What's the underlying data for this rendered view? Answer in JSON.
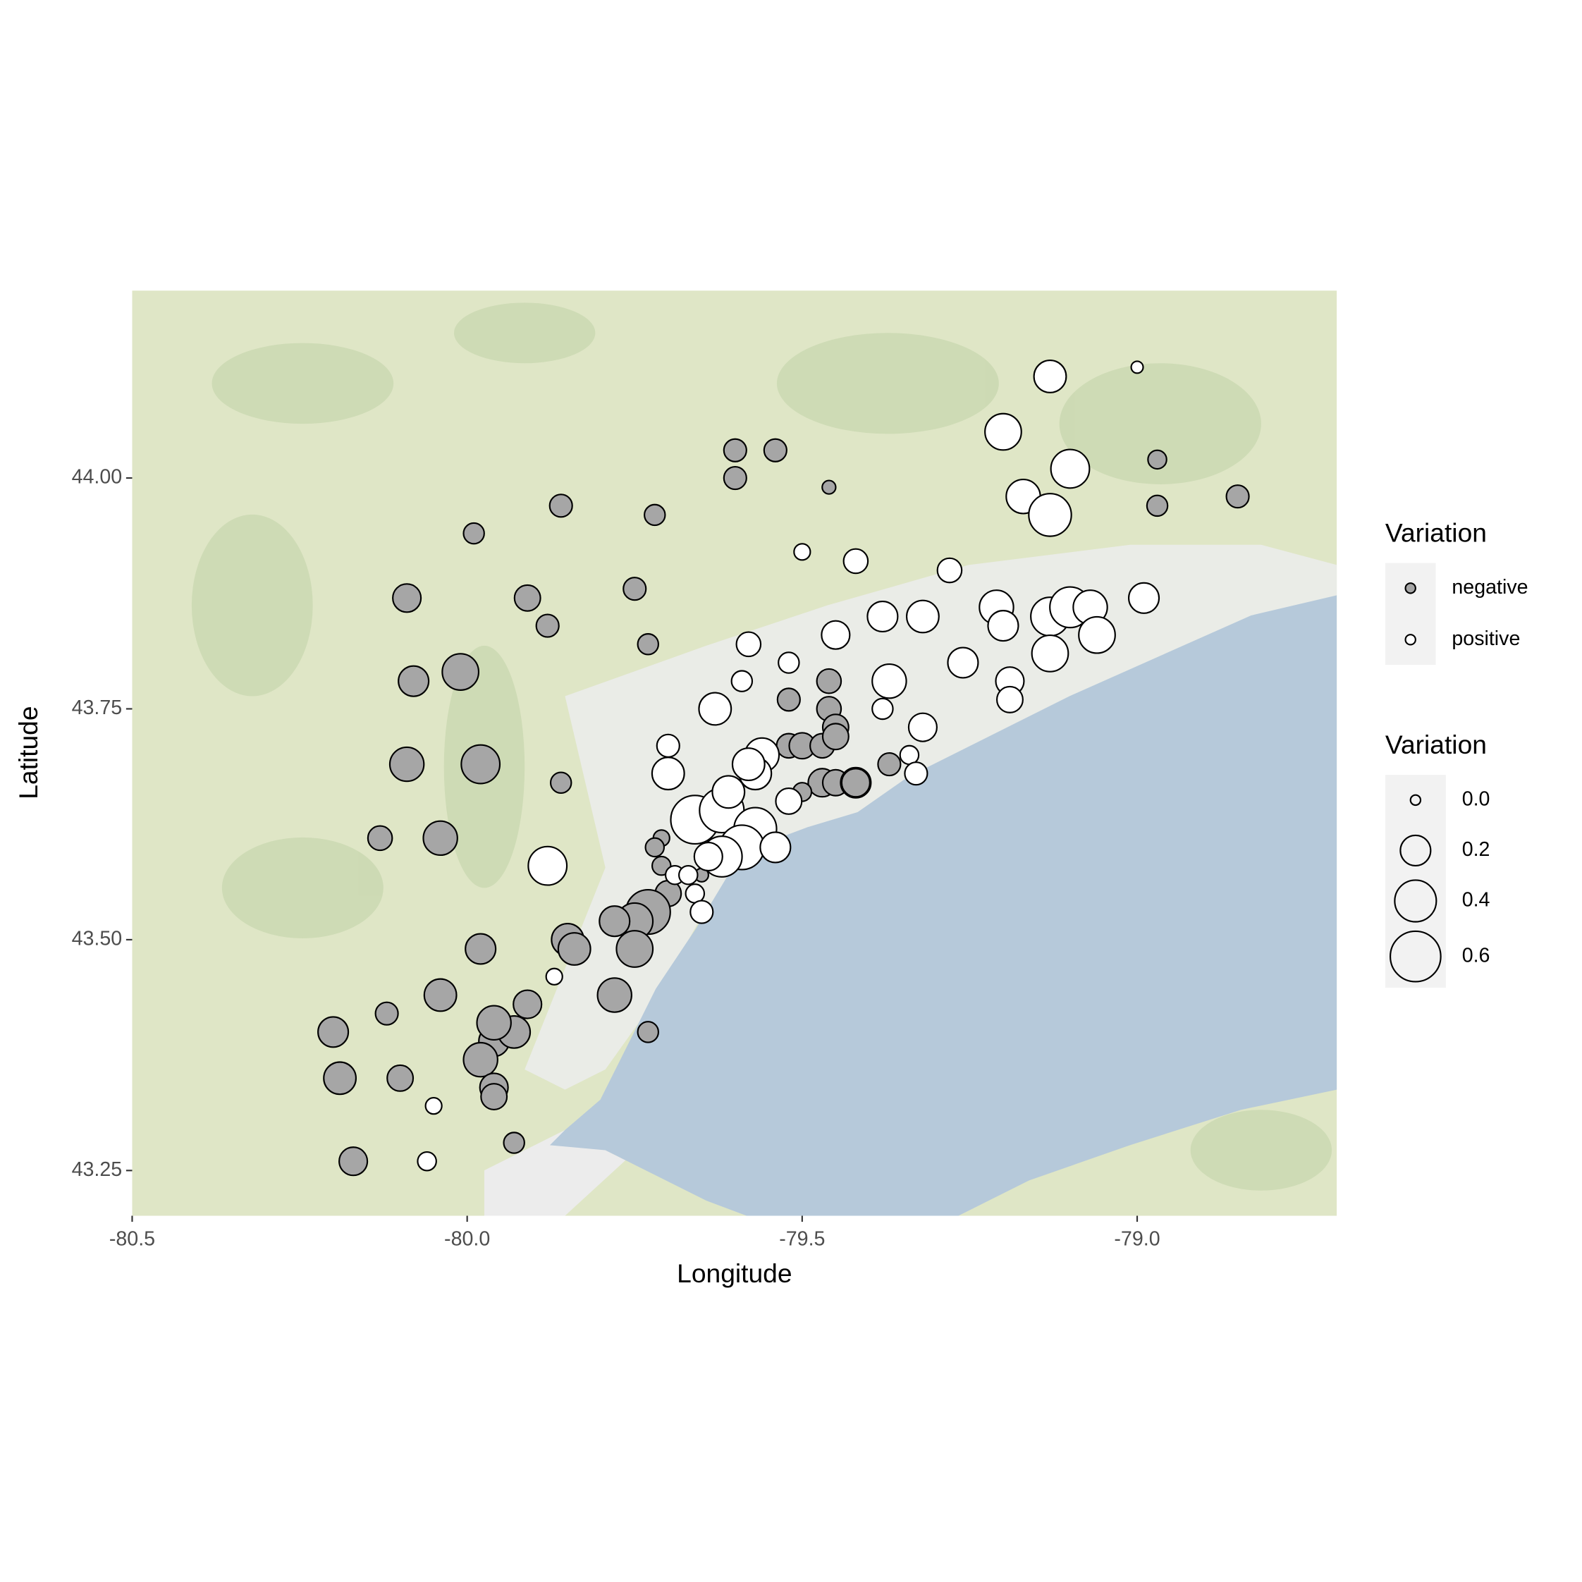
{
  "chart_data": {
    "type": "scatter",
    "x_label": "Longitude",
    "y_label": "Latitude",
    "xlim": [
      -80.5,
      -78.702
    ],
    "ylim": [
      43.201,
      44.203
    ],
    "xticks": [
      {
        "value": -80.5,
        "label": "-80.5"
      },
      {
        "value": -80,
        "label": "-80.0"
      },
      {
        "value": -79.5,
        "label": "-79.5"
      },
      {
        "value": -79,
        "label": "-79.0"
      }
    ],
    "yticks": [
      {
        "value": 43.25,
        "label": "43.25"
      },
      {
        "value": 43.5,
        "label": "43.50"
      },
      {
        "value": 43.75,
        "label": "43.75"
      },
      {
        "value": 44,
        "label": "44.00"
      }
    ],
    "color_legend_title": "Variation",
    "size_legend_title": "Variation",
    "size_legend": [
      {
        "value": 0,
        "label": "0.0"
      },
      {
        "value": 0.2,
        "label": "0.2"
      },
      {
        "value": 0.4,
        "label": "0.4"
      },
      {
        "value": 0.6,
        "label": "0.6"
      }
    ],
    "series": [
      {
        "name": "negative",
        "color": "#a6a6a6",
        "x": [
          -79.6,
          -79.6,
          -79.54,
          -79.46,
          -79.86,
          -79.99,
          -79.72,
          -79.75,
          -79.73,
          -80.09,
          -79.91,
          -79.88,
          -80.01,
          -80.08,
          -79.46,
          -79.52,
          -79.46,
          -79.45,
          -79.52,
          -79.5,
          -79.47,
          -79.45,
          -79.37,
          -80.09,
          -79.98,
          -79.86,
          -79.47,
          -79.45,
          -79.42,
          -79.42,
          -79.5,
          -80.13,
          -80.04,
          -79.71,
          -79.72,
          -79.71,
          -79.7,
          -79.66,
          -79.65,
          -79.73,
          -79.75,
          -79.78,
          -79.75,
          -79.85,
          -79.84,
          -79.98,
          -80.04,
          -79.91,
          -79.78,
          -80.12,
          -80.2,
          -80.19,
          -80.1,
          -79.96,
          -79.93,
          -79.96,
          -79.98,
          -79.96,
          -79.96,
          -79.73,
          -79.93,
          -80.17,
          -78.97,
          -78.97,
          -78.85
        ],
        "y": [
          44.03,
          44.0,
          44.03,
          43.99,
          43.97,
          43.94,
          43.96,
          43.88,
          43.82,
          43.87,
          43.87,
          43.84,
          43.79,
          43.78,
          43.78,
          43.76,
          43.75,
          43.73,
          43.71,
          43.71,
          43.71,
          43.72,
          43.69,
          43.69,
          43.69,
          43.67,
          43.67,
          43.67,
          43.67,
          43.67,
          43.66,
          43.61,
          43.61,
          43.61,
          43.6,
          43.58,
          43.55,
          43.55,
          43.57,
          43.53,
          43.52,
          43.52,
          43.49,
          43.5,
          43.49,
          43.49,
          43.44,
          43.43,
          43.44,
          43.42,
          43.4,
          43.35,
          43.35,
          43.39,
          43.4,
          43.41,
          43.37,
          43.34,
          43.33,
          43.4,
          43.28,
          43.26,
          44.02,
          43.97,
          43.98
        ],
        "size": [
          0.1,
          0.1,
          0.1,
          0.02,
          0.1,
          0.08,
          0.08,
          0.1,
          0.08,
          0.17,
          0.14,
          0.1,
          0.3,
          0.2,
          0.12,
          0.1,
          0.12,
          0.14,
          0.12,
          0.14,
          0.12,
          0.14,
          0.1,
          0.26,
          0.34,
          0.08,
          0.17,
          0.14,
          0.2,
          0.17,
          0.06,
          0.12,
          0.26,
          0.04,
          0.06,
          0.06,
          0.14,
          0.01,
          0.02,
          0.46,
          0.3,
          0.2,
          0.3,
          0.23,
          0.23,
          0.2,
          0.23,
          0.17,
          0.26,
          0.1,
          0.2,
          0.23,
          0.14,
          0.2,
          0.23,
          0.26,
          0.26,
          0.17,
          0.14,
          0.08,
          0.08,
          0.17,
          0.06,
          0.08,
          0.1
        ]
      },
      {
        "name": "positive",
        "color": "#ffffff",
        "x": [
          -79.13,
          -79.0,
          -79.2,
          -79.1,
          -79.17,
          -79.13,
          -79.5,
          -79.42,
          -79.28,
          -79.21,
          -79.2,
          -79.32,
          -79.38,
          -79.13,
          -79.1,
          -79.07,
          -79.06,
          -78.99,
          -79.13,
          -79.26,
          -79.19,
          -79.19,
          -79.58,
          -79.45,
          -79.52,
          -79.59,
          -79.37,
          -79.38,
          -79.32,
          -79.63,
          -79.7,
          -79.34,
          -79.33,
          -79.56,
          -79.57,
          -79.58,
          -79.7,
          -79.66,
          -79.62,
          -79.61,
          -79.57,
          -79.59,
          -79.54,
          -79.52,
          -79.62,
          -79.64,
          -79.69,
          -79.67,
          -79.66,
          -79.65,
          -79.88,
          -79.87,
          -80.05,
          -80.06
        ],
        "y": [
          44.11,
          44.12,
          44.05,
          44.01,
          43.98,
          43.96,
          43.92,
          43.91,
          43.9,
          43.86,
          43.84,
          43.85,
          43.85,
          43.85,
          43.86,
          43.86,
          43.83,
          43.87,
          43.81,
          43.8,
          43.78,
          43.76,
          43.82,
          43.83,
          43.8,
          43.78,
          43.78,
          43.75,
          43.73,
          43.75,
          43.71,
          43.7,
          43.68,
          43.7,
          43.68,
          43.69,
          43.68,
          43.63,
          43.64,
          43.66,
          43.62,
          43.6,
          43.6,
          43.65,
          43.59,
          43.59,
          43.57,
          43.57,
          43.55,
          43.53,
          43.58,
          43.46,
          43.32,
          43.26
        ],
        "size": [
          0.23,
          0.01,
          0.3,
          0.34,
          0.26,
          0.42,
          0.04,
          0.12,
          0.12,
          0.26,
          0.2,
          0.23,
          0.2,
          0.34,
          0.38,
          0.26,
          0.3,
          0.2,
          0.3,
          0.2,
          0.17,
          0.14,
          0.12,
          0.17,
          0.08,
          0.08,
          0.26,
          0.08,
          0.17,
          0.23,
          0.1,
          0.06,
          0.1,
          0.26,
          0.23,
          0.23,
          0.23,
          0.55,
          0.46,
          0.23,
          0.42,
          0.46,
          0.2,
          0.14,
          0.38,
          0.17,
          0.06,
          0.06,
          0.06,
          0.1,
          0.34,
          0.04,
          0.04,
          0.06
        ]
      }
    ]
  }
}
